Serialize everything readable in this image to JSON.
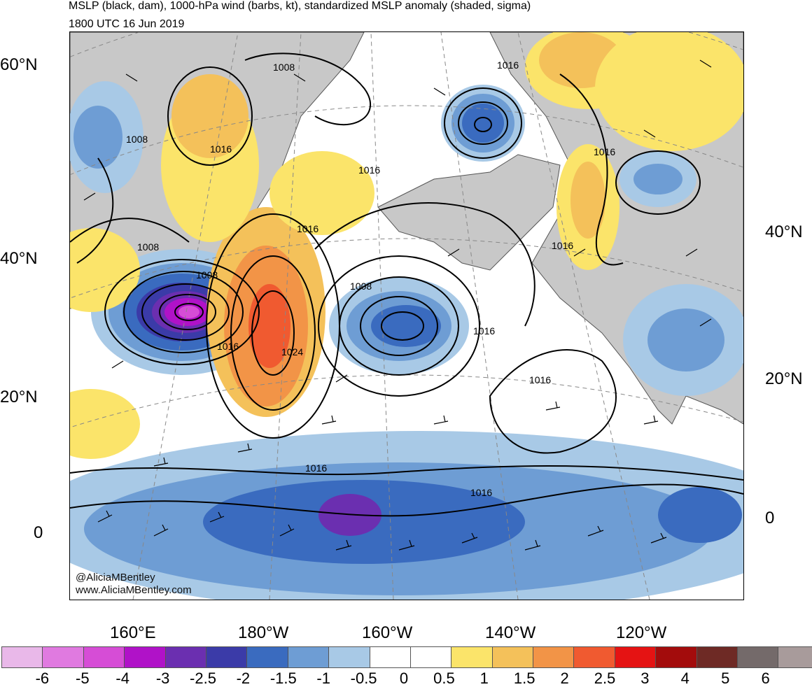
{
  "header": {
    "title": "MSLP (black, dam), 1000-hPa wind (barbs, kt), standardized MSLP anomaly (shaded, sigma)",
    "valid_time": "1800 UTC 16 Jun 2019"
  },
  "axes": {
    "lat_left": [
      "60°N",
      "40°N",
      "20°N",
      "0"
    ],
    "lat_right": [
      "40°N",
      "20°N",
      "0"
    ],
    "lon_bottom": [
      "160°E",
      "180°W",
      "160°W",
      "140°W",
      "120°W"
    ]
  },
  "credit": {
    "handle": "@AliciaMBentley",
    "site": "www.AliciaMBentley.com"
  },
  "contour_labels": [
    "1008",
    "1016",
    "1016",
    "1016",
    "1008",
    "1008",
    "1016",
    "1016",
    "1016",
    "1016",
    "1024",
    "1008",
    "1016",
    "1008",
    "1016",
    "1016",
    "1016"
  ],
  "colorbar": {
    "labels": [
      "-6",
      "-5",
      "-4",
      "-3",
      "-2.5",
      "-2",
      "-1.5",
      "-1",
      "-0.5",
      "0",
      "0.5",
      "1",
      "1.5",
      "2",
      "2.5",
      "3",
      "4",
      "5",
      "6"
    ],
    "colors": [
      "#e9b8e9",
      "#e07ae0",
      "#d64dd6",
      "#b012c8",
      "#6b2fb0",
      "#3b3ba8",
      "#3a6bbf",
      "#6e9dd4",
      "#a8c9e6",
      "#ffffff",
      "#ffffff",
      "#fbe46a",
      "#f4c15a",
      "#f29447",
      "#f05a30",
      "#e51313",
      "#a30c0c",
      "#6e2a25",
      "#746a6a",
      "#a89b9b"
    ]
  },
  "colors": {
    "land": "#c8c8c8",
    "coast": "#555555",
    "contour": "#000000"
  }
}
